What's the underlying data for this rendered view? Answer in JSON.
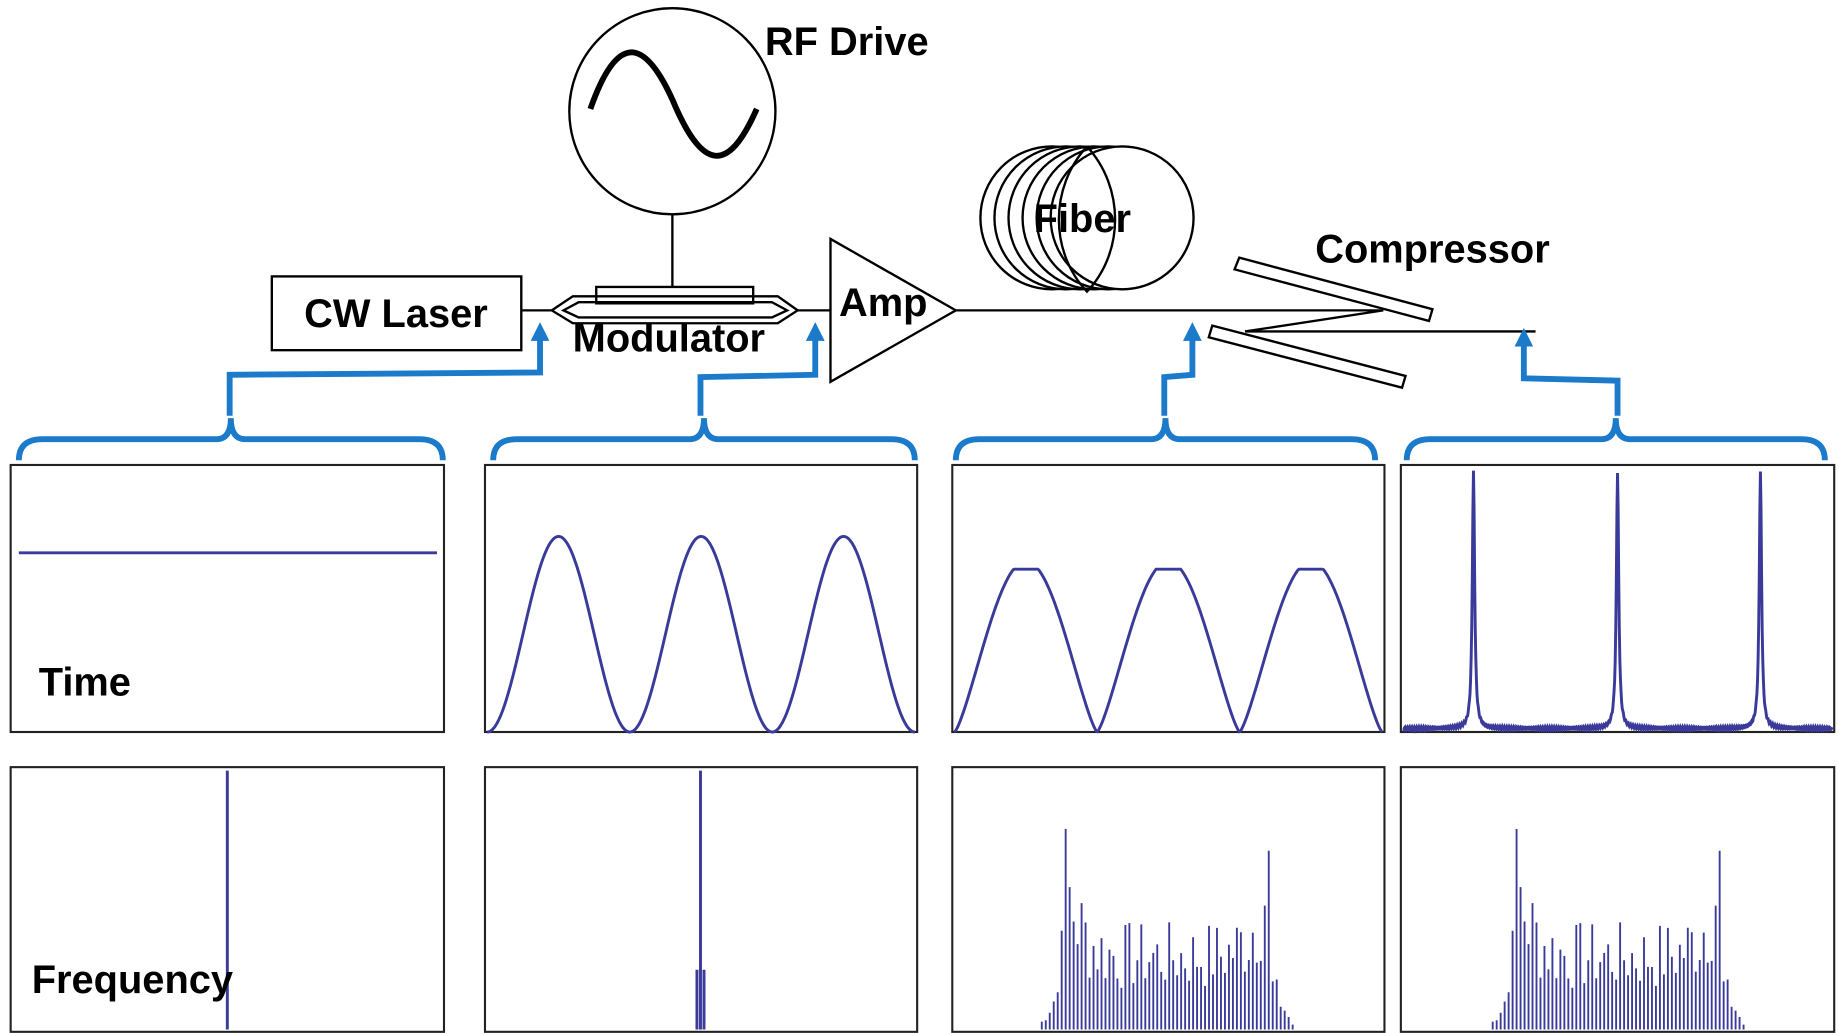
{
  "nodes": [
    {
      "label": "RF Drive"
    },
    {
      "label": "CW Laser"
    },
    {
      "label": "Modulator"
    },
    {
      "label": "Amp"
    },
    {
      "label": "Fiber"
    },
    {
      "label": "Compressor"
    }
  ],
  "rows": [
    {
      "label": "Time"
    },
    {
      "label": "Frequency"
    }
  ]
}
